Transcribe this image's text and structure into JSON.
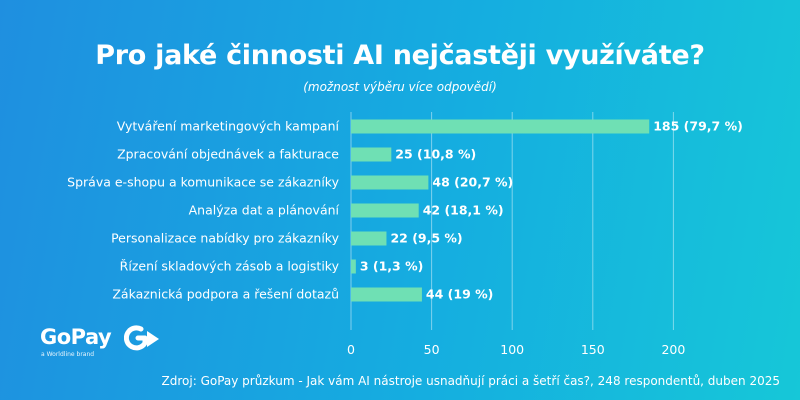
{
  "title": "Pro jaké činnosti AI nejčastěji využíváte?",
  "subtitle": "(možnost výběru více odpovědí)",
  "brand": {
    "name": "GoPay",
    "tagline": "a Worldline brand",
    "icon": "gopay-g-arrow-icon"
  },
  "source": "Zdroj: GoPay průzkum - Jak vám AI nástroje usnadňují práci a šetří čas?, 248 respondentů, duben 2025",
  "colors": {
    "bar": "#6fe0b4",
    "background_start": "#1f8fe0",
    "background_end": "#16c7d8"
  },
  "chart_data": {
    "type": "bar",
    "orientation": "horizontal",
    "categories": [
      "Vytváření marketingových kampaní",
      "Zpracování objednávek a fakturace",
      "Správa e-shopu a komunikace se zákazníky",
      "Analýza dat a plánování",
      "Personalizace nabídky pro zákazníky",
      "Řízení skladových zásob a logistiky",
      "Zákaznická podpora a řešení dotazů"
    ],
    "values": [
      185,
      25,
      48,
      42,
      22,
      3,
      44
    ],
    "data_labels": [
      "185 (79,7 %)",
      "25 (10,8 %)",
      "48 (20,7 %)",
      "42 (18,1 %)",
      "22  (9,5 %)",
      "3 (1,3 %)",
      "44 (19 %)"
    ],
    "xlim": [
      0,
      200
    ],
    "xticks": [
      "0",
      "50",
      "100",
      "150",
      "200"
    ],
    "xtick_values": [
      0,
      50,
      100,
      150,
      200
    ],
    "grid": true,
    "legend": false
  }
}
